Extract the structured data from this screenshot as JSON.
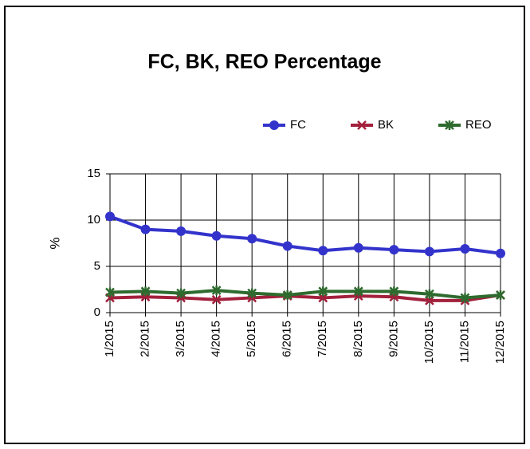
{
  "chart_data": {
    "type": "line",
    "title": "FC, BK, REO Percentage",
    "y_label": "%",
    "categories": [
      "1/2015",
      "2/2015",
      "3/2015",
      "4/2015",
      "5/2015",
      "6/2015",
      "7/2015",
      "8/2015",
      "9/2015",
      "10/2015",
      "11/2015",
      "12/2015"
    ],
    "series": [
      {
        "name": "FC",
        "color": "#3333cc",
        "marker": "circle",
        "values": [
          10.4,
          9.0,
          8.8,
          8.3,
          8.0,
          7.2,
          6.7,
          7.0,
          6.8,
          6.6,
          6.9,
          6.4
        ]
      },
      {
        "name": "BK",
        "color": "#a3203c",
        "marker": "x",
        "values": [
          1.6,
          1.7,
          1.6,
          1.4,
          1.6,
          1.8,
          1.6,
          1.8,
          1.7,
          1.3,
          1.3,
          1.9
        ]
      },
      {
        "name": "REO",
        "color": "#2e6b2e",
        "marker": "star",
        "values": [
          2.2,
          2.3,
          2.1,
          2.4,
          2.1,
          1.9,
          2.3,
          2.3,
          2.3,
          2.0,
          1.6,
          1.9
        ]
      }
    ],
    "ylim": [
      0,
      15
    ],
    "yticks": [
      0,
      5,
      10,
      15
    ],
    "grid": true,
    "legend": "top-right"
  }
}
